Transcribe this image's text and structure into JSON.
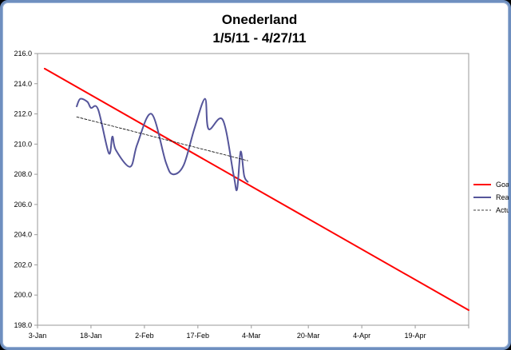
{
  "chart_data": {
    "type": "line",
    "title_lines": [
      "Onederland",
      "1/5/11 - 4/27/11"
    ],
    "xlabel": "",
    "ylabel": "",
    "x_axis": {
      "type": "date",
      "range": [
        "2011-01-03",
        "2011-05-04"
      ],
      "ticks": [
        {
          "date": "2011-01-03",
          "label": "3-Jan"
        },
        {
          "date": "2011-01-18",
          "label": "18-Jan"
        },
        {
          "date": "2011-02-02",
          "label": "2-Feb"
        },
        {
          "date": "2011-02-17",
          "label": "17-Feb"
        },
        {
          "date": "2011-03-04",
          "label": "4-Mar"
        },
        {
          "date": "2011-03-20",
          "label": "20-Mar"
        },
        {
          "date": "2011-04-04",
          "label": "4-Apr"
        },
        {
          "date": "2011-04-19",
          "label": "19-Apr"
        }
      ]
    },
    "y_axis": {
      "range": [
        198.0,
        216.0
      ],
      "tick_values": [
        198.0,
        200.0,
        202.0,
        204.0,
        206.0,
        208.0,
        210.0,
        212.0,
        214.0,
        216.0
      ],
      "tick_labels": [
        "198.0",
        "200.0",
        "202.0",
        "204.0",
        "206.0",
        "208.0",
        "210.0",
        "212.0",
        "214.0",
        "216.0"
      ]
    },
    "grid": false,
    "legend_position": "right",
    "series": [
      {
        "name": "Goal",
        "color": "#ff0000",
        "style": "solid",
        "points": [
          {
            "x": "2011-01-05",
            "y": 215.0
          },
          {
            "x": "2011-05-04",
            "y": 199.0
          }
        ]
      },
      {
        "name": "Real",
        "color": "#55559a",
        "style": "smooth",
        "points": [
          {
            "x": "2011-01-14",
            "y": 212.5
          },
          {
            "x": "2011-01-15",
            "y": 213.0
          },
          {
            "x": "2011-01-17",
            "y": 212.8
          },
          {
            "x": "2011-01-18",
            "y": 212.4
          },
          {
            "x": "2011-01-20",
            "y": 212.3
          },
          {
            "x": "2011-01-23",
            "y": 209.4
          },
          {
            "x": "2011-01-24",
            "y": 210.5
          },
          {
            "x": "2011-01-25",
            "y": 209.6
          },
          {
            "x": "2011-01-29",
            "y": 208.5
          },
          {
            "x": "2011-01-31",
            "y": 210.0
          },
          {
            "x": "2011-02-04",
            "y": 212.0
          },
          {
            "x": "2011-02-08",
            "y": 208.8
          },
          {
            "x": "2011-02-10",
            "y": 208.0
          },
          {
            "x": "2011-02-13",
            "y": 208.6
          },
          {
            "x": "2011-02-16",
            "y": 211.0
          },
          {
            "x": "2011-02-19",
            "y": 213.0
          },
          {
            "x": "2011-02-20",
            "y": 211.0
          },
          {
            "x": "2011-02-24",
            "y": 211.6
          },
          {
            "x": "2011-02-27",
            "y": 208.0
          },
          {
            "x": "2011-02-28",
            "y": 207.0
          },
          {
            "x": "2011-03-01",
            "y": 209.5
          },
          {
            "x": "2011-03-02",
            "y": 207.9
          },
          {
            "x": "2011-03-03",
            "y": 207.5
          }
        ]
      },
      {
        "name": "Actual",
        "color": "#000000",
        "style": "dashed",
        "points": [
          {
            "x": "2011-01-14",
            "y": 211.8
          },
          {
            "x": "2011-03-03",
            "y": 208.9
          }
        ]
      }
    ]
  }
}
